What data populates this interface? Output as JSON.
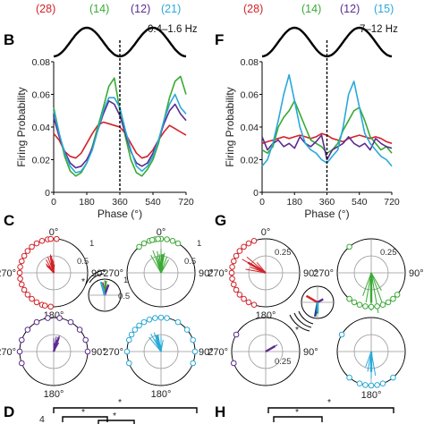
{
  "colors": {
    "red": "#d2232a",
    "green": "#3aa935",
    "purple": "#5b2c8f",
    "cyan": "#29a9d8",
    "blue": "#1f3d9c"
  },
  "panels": {
    "B": {
      "letter": "B",
      "freq": "0.4–1.6 Hz"
    },
    "F": {
      "letter": "F",
      "freq": "7–12 Hz"
    },
    "C": {
      "letter": "C"
    },
    "G": {
      "letter": "G"
    },
    "D": {
      "letter": "D"
    },
    "H": {
      "letter": "H"
    }
  },
  "counts_left": [
    "(28)",
    "(14)",
    "(12)",
    "(21)"
  ],
  "counts_right": [
    "(28)",
    "(14)",
    "(12)",
    "(15)"
  ],
  "polar": {
    "deg0": "0°",
    "deg90": "90°",
    "deg180": "180°",
    "deg270": "270°",
    "r1": "1",
    "r05": "0.5",
    "r025": "0.25",
    "star": "*"
  },
  "bottom": {
    "star": "*",
    "d_digit": "4"
  },
  "chart_data": [
    {
      "type": "line",
      "panel": "B",
      "xlabel": "Phase (°)",
      "ylabel": "Firing Probability",
      "xlim": [
        0,
        720
      ],
      "ylim": [
        0,
        0.08
      ],
      "xticks": [
        0,
        180,
        360,
        540,
        720
      ],
      "yticks": [
        0,
        0.02,
        0.04,
        0.06,
        0.08
      ],
      "vline_x": 360,
      "x": [
        0,
        30,
        60,
        90,
        120,
        150,
        180,
        210,
        240,
        270,
        300,
        330,
        360,
        390,
        420,
        450,
        480,
        510,
        540,
        570,
        600,
        630,
        660,
        690,
        720
      ],
      "series": [
        {
          "color": "red",
          "values": [
            0.036,
            0.032,
            0.025,
            0.022,
            0.021,
            0.024,
            0.03,
            0.036,
            0.041,
            0.043,
            0.042,
            0.041,
            0.04,
            0.036,
            0.03,
            0.024,
            0.021,
            0.022,
            0.026,
            0.032,
            0.037,
            0.041,
            0.039,
            0.037,
            0.035
          ]
        },
        {
          "color": "green",
          "values": [
            0.052,
            0.036,
            0.022,
            0.013,
            0.01,
            0.012,
            0.018,
            0.028,
            0.04,
            0.052,
            0.065,
            0.07,
            0.05,
            0.034,
            0.02,
            0.012,
            0.01,
            0.014,
            0.02,
            0.03,
            0.044,
            0.058,
            0.068,
            0.071,
            0.06
          ]
        },
        {
          "color": "purple",
          "values": [
            0.046,
            0.034,
            0.025,
            0.018,
            0.015,
            0.016,
            0.02,
            0.027,
            0.038,
            0.048,
            0.056,
            0.054,
            0.047,
            0.036,
            0.025,
            0.018,
            0.016,
            0.018,
            0.024,
            0.032,
            0.042,
            0.05,
            0.054,
            0.048,
            0.044
          ]
        },
        {
          "color": "cyan",
          "values": [
            0.05,
            0.036,
            0.024,
            0.016,
            0.012,
            0.013,
            0.018,
            0.026,
            0.038,
            0.05,
            0.058,
            0.058,
            0.052,
            0.038,
            0.026,
            0.016,
            0.013,
            0.016,
            0.022,
            0.032,
            0.044,
            0.054,
            0.06,
            0.052,
            0.048
          ]
        }
      ]
    },
    {
      "type": "line",
      "panel": "F",
      "xlabel": "Phase (°)",
      "ylabel": "Firing Probability",
      "xlim": [
        0,
        720
      ],
      "ylim": [
        0,
        0.08
      ],
      "xticks": [
        0,
        180,
        360,
        540,
        720
      ],
      "yticks": [
        0,
        0.02,
        0.04,
        0.06,
        0.08
      ],
      "vline_x": 360,
      "x": [
        0,
        30,
        60,
        90,
        120,
        150,
        180,
        210,
        240,
        270,
        300,
        330,
        360,
        390,
        420,
        450,
        480,
        510,
        540,
        570,
        600,
        630,
        660,
        690,
        720
      ],
      "series": [
        {
          "color": "red",
          "values": [
            0.03,
            0.031,
            0.032,
            0.033,
            0.034,
            0.033,
            0.034,
            0.035,
            0.034,
            0.033,
            0.034,
            0.036,
            0.035,
            0.033,
            0.032,
            0.031,
            0.033,
            0.034,
            0.035,
            0.034,
            0.033,
            0.034,
            0.033,
            0.031,
            0.03
          ]
        },
        {
          "color": "green",
          "values": [
            0.026,
            0.024,
            0.028,
            0.04,
            0.046,
            0.05,
            0.056,
            0.048,
            0.04,
            0.032,
            0.03,
            0.028,
            0.024,
            0.026,
            0.03,
            0.038,
            0.044,
            0.05,
            0.052,
            0.044,
            0.034,
            0.03,
            0.026,
            0.028,
            0.024
          ]
        },
        {
          "color": "purple",
          "values": [
            0.034,
            0.026,
            0.03,
            0.032,
            0.028,
            0.03,
            0.027,
            0.034,
            0.03,
            0.028,
            0.031,
            0.035,
            0.02,
            0.026,
            0.028,
            0.03,
            0.034,
            0.03,
            0.028,
            0.03,
            0.026,
            0.033,
            0.03,
            0.028,
            0.027
          ]
        },
        {
          "color": "cyan",
          "values": [
            0.016,
            0.02,
            0.03,
            0.044,
            0.06,
            0.072,
            0.056,
            0.04,
            0.03,
            0.026,
            0.024,
            0.02,
            0.018,
            0.022,
            0.026,
            0.04,
            0.06,
            0.068,
            0.052,
            0.036,
            0.03,
            0.026,
            0.022,
            0.02,
            0.016
          ]
        }
      ]
    },
    {
      "type": "polar",
      "panel": "C",
      "plots": [
        {
          "color": "red",
          "mean_deg": 350,
          "mean_len": 0.5,
          "vectors": [
            [
              320,
              0.35
            ],
            [
              330,
              0.45
            ],
            [
              340,
              0.5
            ],
            [
              345,
              0.3
            ],
            [
              350,
              0.55
            ],
            [
              355,
              0.4
            ],
            [
              0,
              0.35
            ],
            [
              5,
              0.25
            ],
            [
              315,
              0.3
            ],
            [
              325,
              0.25
            ]
          ],
          "cells_deg": [
            200,
            210,
            220,
            230,
            240,
            250,
            260,
            270,
            280,
            290,
            300,
            310,
            320,
            330,
            340,
            350,
            355,
            5,
            185,
            195
          ]
        },
        {
          "color": "green",
          "mean_deg": 5,
          "mean_len": 0.55,
          "vectors": [
            [
              330,
              0.6
            ],
            [
              340,
              0.7
            ],
            [
              350,
              0.65
            ],
            [
              0,
              0.7
            ],
            [
              10,
              0.6
            ],
            [
              20,
              0.5
            ],
            [
              30,
              0.45
            ],
            [
              345,
              0.5
            ],
            [
              355,
              0.55
            ],
            [
              5,
              0.4
            ]
          ],
          "cells_deg": [
            320,
            330,
            340,
            350,
            0,
            10,
            20,
            30,
            345,
            355
          ]
        },
        {
          "color": "purple",
          "mean_deg": 20,
          "mean_len": 0.45,
          "vectors": [
            [
              0,
              0.4
            ],
            [
              10,
              0.45
            ],
            [
              20,
              0.5
            ],
            [
              30,
              0.3
            ],
            [
              15,
              0.35
            ],
            [
              5,
              0.25
            ]
          ],
          "cells_deg": [
            250,
            270,
            290,
            310,
            330,
            350,
            10,
            30,
            50,
            70,
            90
          ]
        },
        {
          "color": "cyan",
          "mean_deg": 345,
          "mean_len": 0.5,
          "vectors": [
            [
              320,
              0.55
            ],
            [
              330,
              0.6
            ],
            [
              340,
              0.6
            ],
            [
              350,
              0.5
            ],
            [
              0,
              0.45
            ],
            [
              10,
              0.35
            ],
            [
              335,
              0.4
            ],
            [
              345,
              0.35
            ]
          ],
          "cells_deg": [
            250,
            270,
            290,
            300,
            310,
            320,
            330,
            340,
            350,
            0,
            10,
            30,
            50,
            70,
            90,
            110
          ]
        }
      ]
    },
    {
      "type": "polar",
      "panel": "G",
      "plots": [
        {
          "color": "red",
          "mean_deg": 300,
          "mean_len": 0.15,
          "vectors": [
            [
              280,
              0.15
            ],
            [
              300,
              0.2
            ],
            [
              310,
              0.18
            ],
            [
              290,
              0.12
            ],
            [
              320,
              0.1
            ]
          ],
          "cells_deg": [
            200,
            210,
            220,
            230,
            240,
            250,
            260,
            270,
            280,
            290,
            300,
            310,
            320,
            330,
            340
          ]
        },
        {
          "color": "green",
          "mean_deg": 180,
          "mean_len": 0.22,
          "vectors": [
            [
              160,
              0.25
            ],
            [
              170,
              0.3
            ],
            [
              180,
              0.28
            ],
            [
              190,
              0.22
            ],
            [
              200,
              0.18
            ],
            [
              150,
              0.15
            ]
          ],
          "cells_deg": [
            130,
            140,
            150,
            160,
            170,
            180,
            190,
            200,
            210,
            220,
            320
          ]
        },
        {
          "color": "purple",
          "mean_deg": 60,
          "mean_len": 0.08,
          "vectors": [
            [
              60,
              0.1
            ]
          ],
          "cells_deg": [
            300,
            250
          ]
        },
        {
          "color": "cyan",
          "mean_deg": 180,
          "mean_len": 0.15,
          "vectors": [
            [
              170,
              0.18
            ],
            [
              180,
              0.2
            ],
            [
              190,
              0.15
            ],
            [
              200,
              0.12
            ]
          ],
          "cells_deg": [
            140,
            160,
            170,
            180,
            190,
            200,
            220,
            300
          ]
        }
      ]
    }
  ]
}
